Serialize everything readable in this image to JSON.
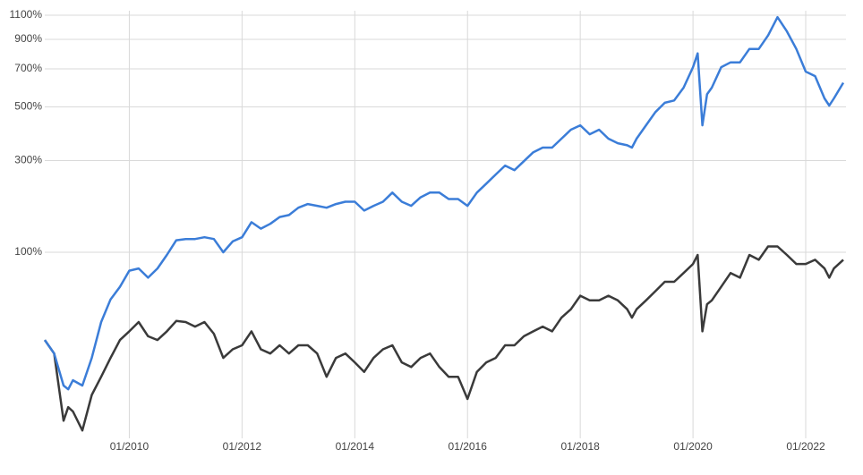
{
  "chart_data": {
    "type": "line",
    "yscale": "log",
    "grid": true,
    "x": [
      "07/2008",
      "09/2008",
      "11/2008",
      "12/2008",
      "01/2009",
      "03/2009",
      "05/2009",
      "07/2009",
      "09/2009",
      "11/2009",
      "01/2010",
      "03/2010",
      "05/2010",
      "07/2010",
      "09/2010",
      "11/2010",
      "01/2011",
      "03/2011",
      "05/2011",
      "07/2011",
      "09/2011",
      "11/2011",
      "01/2012",
      "03/2012",
      "05/2012",
      "07/2012",
      "09/2012",
      "11/2012",
      "01/2013",
      "03/2013",
      "05/2013",
      "07/2013",
      "09/2013",
      "11/2013",
      "01/2014",
      "03/2014",
      "05/2014",
      "07/2014",
      "09/2014",
      "11/2014",
      "01/2015",
      "03/2015",
      "05/2015",
      "07/2015",
      "09/2015",
      "11/2015",
      "01/2016",
      "03/2016",
      "05/2016",
      "07/2016",
      "09/2016",
      "11/2016",
      "01/2017",
      "03/2017",
      "05/2017",
      "07/2017",
      "09/2017",
      "11/2017",
      "01/2018",
      "03/2018",
      "05/2018",
      "07/2018",
      "09/2018",
      "11/2018",
      "12/2018",
      "01/2019",
      "03/2019",
      "05/2019",
      "07/2019",
      "09/2019",
      "11/2019",
      "01/2020",
      "02/2020",
      "03/2020",
      "04/2020",
      "05/2020",
      "07/2020",
      "09/2020",
      "11/2020",
      "01/2021",
      "03/2021",
      "05/2021",
      "07/2021",
      "09/2021",
      "11/2021",
      "01/2022",
      "03/2022",
      "05/2022",
      "06/2022",
      "07/2022",
      "09/2022"
    ],
    "series": [
      {
        "color": "#3b7dd8",
        "values": [
          3,
          -7,
          -27,
          -29,
          -24,
          -27,
          -10,
          18,
          40,
          54,
          74,
          77,
          65,
          77,
          96,
          119,
          121,
          121,
          124,
          121,
          100,
          117,
          124,
          151,
          139,
          148,
          161,
          165,
          180,
          188,
          184,
          180,
          188,
          193,
          193,
          174,
          184,
          193,
          214,
          193,
          184,
          203,
          214,
          214,
          199,
          199,
          184,
          214,
          236,
          260,
          285,
          272,
          298,
          326,
          341,
          341,
          372,
          405,
          422,
          388,
          405,
          372,
          356,
          349,
          341,
          372,
          422,
          477,
          519,
          530,
          594,
          710,
          799,
          422,
          560,
          594,
          710,
          740,
          740,
          830,
          830,
          930,
          1082,
          962,
          830,
          684,
          657,
          540,
          506,
          540,
          620
        ]
      },
      {
        "color": "#3a3a3a",
        "values": [
          3,
          -7,
          -44,
          -38,
          -40,
          -48,
          -32,
          -22,
          -10,
          3,
          10,
          18,
          6,
          3,
          10,
          19,
          18,
          14,
          18,
          8,
          -10,
          -4,
          -1,
          10,
          -4,
          -7,
          -1,
          -7,
          -1,
          -1,
          -7,
          -22,
          -10,
          -7,
          -13,
          -19,
          -10,
          -4,
          -1,
          -13,
          -16,
          -10,
          -7,
          -16,
          -22,
          -22,
          -34,
          -19,
          -13,
          -10,
          -1,
          -1,
          6,
          10,
          14,
          10,
          22,
          30,
          44,
          39,
          39,
          44,
          39,
          30,
          22,
          30,
          39,
          49,
          60,
          60,
          71,
          83,
          96,
          10,
          35,
          39,
          54,
          71,
          65,
          96,
          89,
          109,
          109,
          96,
          83,
          83,
          89,
          77,
          65,
          77,
          89
        ]
      }
    ],
    "xlim": [
      "07/2008",
      "09/2022"
    ],
    "xticks": [
      "01/2010",
      "01/2012",
      "01/2014",
      "01/2016",
      "01/2018",
      "01/2020",
      "01/2022"
    ],
    "ylim": [
      -51,
      1100
    ],
    "yticks": [
      {
        "value": 100,
        "label": "100%"
      },
      {
        "value": 300,
        "label": "300%"
      },
      {
        "value": 500,
        "label": "500%"
      },
      {
        "value": 700,
        "label": "700%"
      },
      {
        "value": 900,
        "label": "900%"
      },
      {
        "value": 1100,
        "label": "1100%"
      }
    ]
  }
}
